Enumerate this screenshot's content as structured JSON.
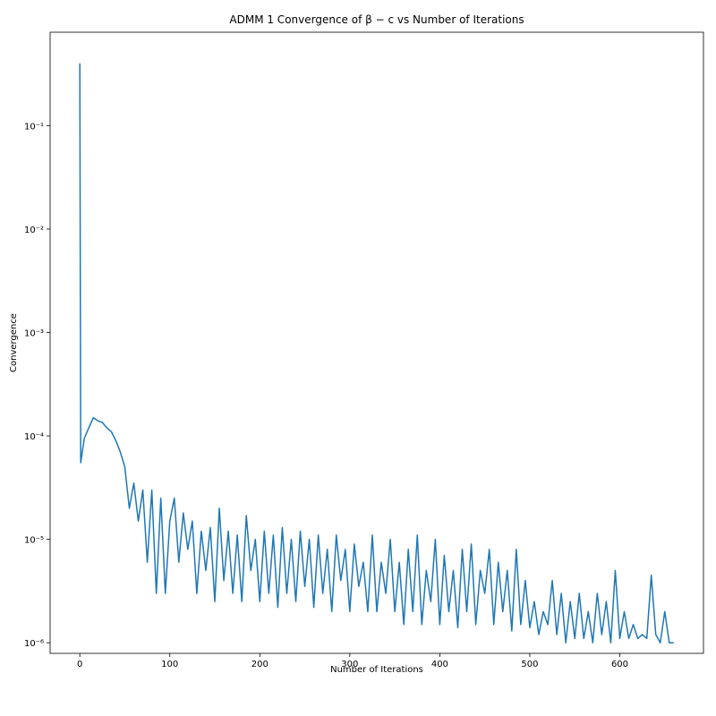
{
  "chart_data": {
    "type": "line",
    "title": "ADMM 1 Convergence of β − c vs Number of Iterations",
    "xlabel": "Number of Iterations",
    "ylabel": "Convergence",
    "log_y": true,
    "color": "#1f77b4",
    "xlim": [
      -33,
      693
    ],
    "ylim": [
      7.9e-07,
      0.8
    ],
    "xticks": [
      0,
      100,
      200,
      300,
      400,
      500,
      600
    ],
    "yticks": [
      {
        "value": 1e-06,
        "label": "10⁻⁶"
      },
      {
        "value": 1e-05,
        "label": "10⁻⁵"
      },
      {
        "value": 0.0001,
        "label": "10⁻⁴"
      },
      {
        "value": 0.001,
        "label": "10⁻³"
      },
      {
        "value": 0.01,
        "label": "10⁻²"
      },
      {
        "value": 0.1,
        "label": "10⁻¹"
      }
    ],
    "x": [
      0,
      1,
      5,
      10,
      15,
      20,
      25,
      30,
      35,
      40,
      45,
      50,
      55,
      60,
      65,
      70,
      75,
      80,
      85,
      90,
      95,
      100,
      105,
      110,
      115,
      120,
      125,
      130,
      135,
      140,
      145,
      150,
      155,
      160,
      165,
      170,
      175,
      180,
      185,
      190,
      195,
      200,
      205,
      210,
      215,
      220,
      225,
      230,
      235,
      240,
      245,
      250,
      255,
      260,
      265,
      270,
      275,
      280,
      285,
      290,
      295,
      300,
      305,
      310,
      315,
      320,
      325,
      330,
      335,
      340,
      345,
      350,
      355,
      360,
      365,
      370,
      375,
      380,
      385,
      390,
      395,
      400,
      405,
      410,
      415,
      420,
      425,
      430,
      435,
      440,
      445,
      450,
      455,
      460,
      465,
      470,
      475,
      480,
      485,
      490,
      495,
      500,
      505,
      510,
      515,
      520,
      525,
      530,
      535,
      540,
      545,
      550,
      555,
      560,
      565,
      570,
      575,
      580,
      585,
      590,
      595,
      600,
      605,
      610,
      615,
      620,
      625,
      630,
      635,
      640,
      645,
      650,
      655,
      660
    ],
    "values": [
      0.4,
      5.5e-05,
      9.5e-05,
      0.00012,
      0.00015,
      0.00014,
      0.000135,
      0.00012,
      0.00011,
      9e-05,
      7e-05,
      5e-05,
      2e-05,
      3.5e-05,
      1.5e-05,
      3e-05,
      6e-06,
      3e-05,
      3e-06,
      2.5e-05,
      3e-06,
      1.5e-05,
      2.5e-05,
      6e-06,
      1.8e-05,
      8e-06,
      1.5e-05,
      3e-06,
      1.2e-05,
      5e-06,
      1.3e-05,
      2.5e-06,
      2e-05,
      4e-06,
      1.2e-05,
      3e-06,
      1.1e-05,
      2.5e-06,
      1.7e-05,
      5e-06,
      1e-05,
      2.5e-06,
      1.2e-05,
      3e-06,
      1.1e-05,
      2.2e-06,
      1.3e-05,
      3e-06,
      1e-05,
      2.5e-06,
      1.2e-05,
      3.5e-06,
      1e-05,
      2.2e-06,
      1.1e-05,
      3e-06,
      8e-06,
      2e-06,
      1.1e-05,
      4e-06,
      8e-06,
      2e-06,
      9e-06,
      3.5e-06,
      6e-06,
      2e-06,
      1.1e-05,
      2e-06,
      6e-06,
      3e-06,
      1e-05,
      2e-06,
      6e-06,
      1.5e-06,
      8e-06,
      2e-06,
      1.1e-05,
      1.5e-06,
      5e-06,
      2.5e-06,
      1e-05,
      1.5e-06,
      7e-06,
      2e-06,
      5e-06,
      1.4e-06,
      8e-06,
      2e-06,
      9e-06,
      1.5e-06,
      5e-06,
      3e-06,
      8e-06,
      1.5e-06,
      6e-06,
      2e-06,
      5e-06,
      1.3e-06,
      8e-06,
      1.5e-06,
      4e-06,
      1.4e-06,
      2.5e-06,
      1.2e-06,
      2e-06,
      1.5e-06,
      4e-06,
      1.2e-06,
      3e-06,
      1e-06,
      2.5e-06,
      1.1e-06,
      3e-06,
      1.1e-06,
      2e-06,
      1e-06,
      3e-06,
      1.2e-06,
      2.5e-06,
      1e-06,
      5e-06,
      1.1e-06,
      2e-06,
      1.1e-06,
      1.5e-06,
      1.1e-06,
      1.2e-06,
      1.1e-06,
      4.5e-06,
      1.2e-06,
      1e-06,
      2e-06,
      1e-06,
      1e-06
    ]
  }
}
